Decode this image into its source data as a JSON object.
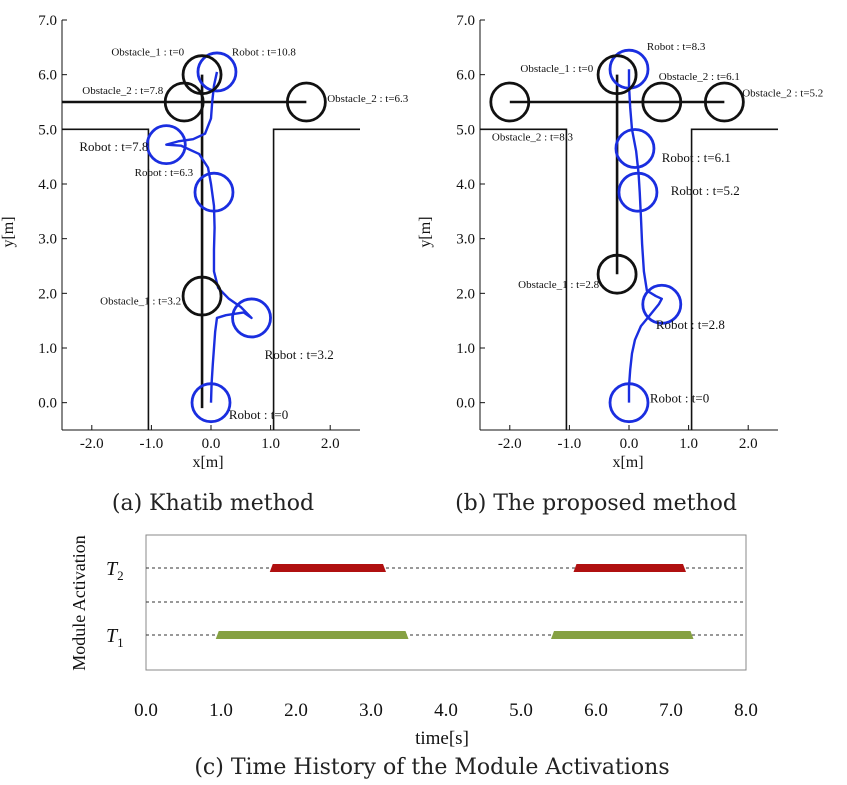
{
  "chart_data": [
    {
      "type": "scatter",
      "id": "a",
      "caption": "(a) Khatib method",
      "xlabel": "x[m]",
      "ylabel": "y[m]",
      "xlim": [
        -2.5,
        2.5
      ],
      "ylim": [
        -0.5,
        7.0
      ],
      "xticks": [
        "-2.0",
        "-1.0",
        "0.0",
        "1.0",
        "2.0"
      ],
      "yticks": [
        "0.0",
        "1.0",
        "2.0",
        "3.0",
        "4.0",
        "5.0",
        "6.0",
        "7.0"
      ],
      "corridor": {
        "x_left": -1.05,
        "x_right": 1.05,
        "y_top": 5.0,
        "x_min": -2.5,
        "x_max": 2.5
      },
      "obstacle_paths": [
        {
          "points": [
            [
              -2.5,
              5.5
            ],
            [
              1.6,
              5.5
            ]
          ]
        },
        {
          "points": [
            [
              -0.15,
              6.0
            ],
            [
              -0.15,
              -0.1
            ]
          ]
        }
      ],
      "robot_path": [
        [
          0.0,
          0.0
        ],
        [
          0.01,
          0.35
        ],
        [
          0.03,
          0.7
        ],
        [
          0.05,
          1.0
        ],
        [
          0.07,
          1.3
        ],
        [
          0.1,
          1.55
        ],
        [
          0.25,
          1.6
        ],
        [
          0.55,
          1.65
        ],
        [
          0.68,
          1.55
        ],
        [
          0.5,
          1.75
        ],
        [
          0.3,
          1.9
        ],
        [
          0.12,
          2.1
        ],
        [
          0.05,
          2.4
        ],
        [
          0.05,
          2.8
        ],
        [
          0.06,
          3.2
        ],
        [
          0.05,
          3.6
        ],
        [
          0.0,
          4.0
        ],
        [
          -0.05,
          4.3
        ],
        [
          -0.2,
          4.55
        ],
        [
          -0.5,
          4.7
        ],
        [
          -0.75,
          4.72
        ],
        [
          -0.55,
          4.78
        ],
        [
          -0.3,
          4.82
        ],
        [
          -0.1,
          4.92
        ],
        [
          0.0,
          5.2
        ],
        [
          0.02,
          5.5
        ],
        [
          0.05,
          5.8
        ],
        [
          0.1,
          6.05
        ]
      ],
      "circles": [
        {
          "role": "robot",
          "x": 0.0,
          "y": 0.0,
          "label": "Robot : t=0",
          "lx": 0.3,
          "ly": -0.3,
          "anchor": "start",
          "fs": 13
        },
        {
          "role": "robot",
          "x": 0.68,
          "y": 1.55,
          "label": "Robot : t=3.2",
          "lx": 0.9,
          "ly": 0.8,
          "anchor": "start",
          "fs": 13
        },
        {
          "role": "robot",
          "x": 0.05,
          "y": 3.85,
          "label": "Robot : t=6.3",
          "lx": -0.3,
          "ly": 4.15,
          "anchor": "end",
          "fs": 11
        },
        {
          "role": "robot",
          "x": -0.75,
          "y": 4.72,
          "label": "Robot : t=7.8",
          "lx": -1.05,
          "ly": 4.6,
          "anchor": "end",
          "fs": 13
        },
        {
          "role": "robot",
          "x": 0.1,
          "y": 6.05,
          "label": "Robot : t=10.8",
          "lx": 0.35,
          "ly": 6.35,
          "anchor": "start",
          "fs": 11
        },
        {
          "role": "obstacle",
          "x": -0.15,
          "y": 1.95,
          "label": "Obstacle_1 : t=3.2",
          "lx": -0.5,
          "ly": 1.8,
          "anchor": "end",
          "fs": 11
        },
        {
          "role": "obstacle",
          "x": -0.15,
          "y": 6.0,
          "label": "Obstacle_1 : t=0",
          "lx": -0.45,
          "ly": 6.35,
          "anchor": "end",
          "fs": 11
        },
        {
          "role": "obstacle",
          "x": -0.45,
          "y": 5.5,
          "label": "Obstacle_2 : t=7.8",
          "lx": -0.8,
          "ly": 5.65,
          "anchor": "end",
          "fs": 11
        },
        {
          "role": "obstacle",
          "x": 1.6,
          "y": 5.5,
          "label": "Obstacle_2 : t=6.3",
          "lx": 1.95,
          "ly": 5.5,
          "anchor": "start",
          "fs": 11
        }
      ]
    },
    {
      "type": "scatter",
      "id": "b",
      "caption": "(b) The proposed method",
      "xlabel": "x[m]",
      "ylabel": "y[m]",
      "xlim": [
        -2.5,
        2.5
      ],
      "ylim": [
        -0.5,
        7.0
      ],
      "xticks": [
        "-2.0",
        "-1.0",
        "0.0",
        "1.0",
        "2.0"
      ],
      "yticks": [
        "0.0",
        "1.0",
        "2.0",
        "3.0",
        "4.0",
        "5.0",
        "6.0",
        "7.0"
      ],
      "corridor": {
        "x_left": -1.05,
        "x_right": 1.05,
        "y_top": 5.0,
        "x_min": -2.5,
        "x_max": 2.5
      },
      "obstacle_paths": [
        {
          "points": [
            [
              -2.0,
              5.5
            ],
            [
              1.6,
              5.5
            ]
          ]
        },
        {
          "points": [
            [
              -0.2,
              6.0
            ],
            [
              -0.2,
              2.35
            ]
          ]
        }
      ],
      "robot_path": [
        [
          0.0,
          0.0
        ],
        [
          0.0,
          0.3
        ],
        [
          0.02,
          0.6
        ],
        [
          0.05,
          0.9
        ],
        [
          0.1,
          1.15
        ],
        [
          0.2,
          1.4
        ],
        [
          0.35,
          1.6
        ],
        [
          0.5,
          1.8
        ],
        [
          0.55,
          1.9
        ],
        [
          0.45,
          1.95
        ],
        [
          0.3,
          2.05
        ],
        [
          0.25,
          2.4
        ],
        [
          0.22,
          2.9
        ],
        [
          0.2,
          3.4
        ],
        [
          0.18,
          3.85
        ],
        [
          0.16,
          4.2
        ],
        [
          0.12,
          4.6
        ],
        [
          0.05,
          5.0
        ],
        [
          0.02,
          5.4
        ],
        [
          0.0,
          5.8
        ],
        [
          0.0,
          6.1
        ]
      ],
      "circles": [
        {
          "role": "robot",
          "x": 0.0,
          "y": 0.0,
          "label": "Robot : t=0",
          "lx": 0.35,
          "ly": 0.0,
          "anchor": "start",
          "fs": 13
        },
        {
          "role": "robot",
          "x": 0.55,
          "y": 1.8,
          "label": "Robot : t=2.8",
          "lx": 0.45,
          "ly": 1.35,
          "anchor": "start",
          "fs": 13
        },
        {
          "role": "robot",
          "x": 0.15,
          "y": 3.85,
          "label": "Robot : t=5.2",
          "lx": 0.7,
          "ly": 3.8,
          "anchor": "start",
          "fs": 13
        },
        {
          "role": "robot",
          "x": 0.1,
          "y": 4.65,
          "label": "Robot : t=6.1",
          "lx": 0.55,
          "ly": 4.4,
          "anchor": "start",
          "fs": 13
        },
        {
          "role": "robot",
          "x": 0.0,
          "y": 6.1,
          "label": "Robot : t=8.3",
          "lx": 0.3,
          "ly": 6.45,
          "anchor": "start",
          "fs": 11
        },
        {
          "role": "obstacle",
          "x": -0.2,
          "y": 2.35,
          "label": "Obstacle_1 : t=2.8",
          "lx": -0.5,
          "ly": 2.1,
          "anchor": "end",
          "fs": 11
        },
        {
          "role": "obstacle",
          "x": -0.2,
          "y": 6.0,
          "label": "Obstacle_1 : t=0",
          "lx": -0.6,
          "ly": 6.05,
          "anchor": "end",
          "fs": 11
        },
        {
          "role": "obstacle",
          "x": -2.0,
          "y": 5.5,
          "label": "Obstacle_2 : t=8.3",
          "lx": -2.3,
          "ly": 4.8,
          "anchor": "start",
          "fs": 11
        },
        {
          "role": "obstacle",
          "x": 0.55,
          "y": 5.5,
          "label": "Obstacle_2 : t=6.1",
          "lx": 0.5,
          "ly": 5.9,
          "anchor": "start",
          "fs": 11
        },
        {
          "role": "obstacle",
          "x": 1.6,
          "y": 5.5,
          "label": "Obstacle_2 : t=5.2",
          "lx": 1.9,
          "ly": 5.6,
          "anchor": "start",
          "fs": 11
        }
      ]
    },
    {
      "type": "timeline",
      "id": "c",
      "caption": "(c) Time History of the Module Activations",
      "xlabel": "time[s]",
      "ylabel": "Module Activation",
      "xlim": [
        0.0,
        8.0
      ],
      "xticks": [
        "0.0",
        "1.0",
        "2.0",
        "3.0",
        "4.0",
        "5.0",
        "6.0",
        "7.0",
        "8.0"
      ],
      "rows": [
        {
          "name": "T",
          "sub": "2",
          "color": "#b01010",
          "intervals": [
            [
              1.65,
              3.2
            ],
            [
              5.7,
              7.2
            ]
          ]
        },
        {
          "name": "T",
          "sub": "1",
          "color": "#86a143",
          "intervals": [
            [
              0.93,
              3.5
            ],
            [
              5.4,
              7.3
            ]
          ]
        }
      ]
    }
  ],
  "colors": {
    "robot": "#1a2ee0",
    "obstacle": "#111111",
    "axis": "#111111",
    "dashed": "#333333"
  }
}
